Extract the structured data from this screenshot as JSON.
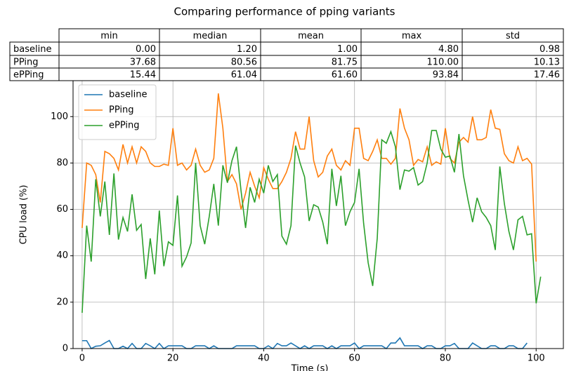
{
  "chart_data": {
    "type": "line",
    "title": "Comparing performance of pping variants",
    "xlabel": "Time (s)",
    "ylabel": "CPU load (%)",
    "table": {
      "columns": [
        "min",
        "median",
        "mean",
        "max",
        "std"
      ],
      "rows": [
        {
          "label": "baseline",
          "cells": [
            "0.00",
            "1.20",
            "1.00",
            "4.80",
            "0.98"
          ]
        },
        {
          "label": "PPing",
          "cells": [
            "37.68",
            "80.56",
            "81.75",
            "110.00",
            "10.13"
          ]
        },
        {
          "label": "ePPing",
          "cells": [
            "15.44",
            "61.04",
            "61.60",
            "93.84",
            "17.46"
          ]
        }
      ]
    },
    "x": [
      0,
      1,
      2,
      3,
      4,
      5,
      6,
      7,
      8,
      9,
      10,
      11,
      12,
      13,
      14,
      15,
      16,
      17,
      18,
      19,
      20,
      21,
      22,
      23,
      24,
      25,
      26,
      27,
      28,
      29,
      30,
      31,
      32,
      33,
      34,
      35,
      36,
      37,
      38,
      39,
      40,
      41,
      42,
      43,
      44,
      45,
      46,
      47,
      48,
      49,
      50,
      51,
      52,
      53,
      54,
      55,
      56,
      57,
      58,
      59,
      60,
      61,
      62,
      63,
      64,
      65,
      66,
      67,
      68,
      69,
      70,
      71,
      72,
      73,
      74,
      75,
      76,
      77,
      78,
      79,
      80,
      81,
      82,
      83,
      84,
      85,
      86,
      87,
      88,
      89,
      90,
      91,
      92,
      93,
      94,
      95,
      96,
      97,
      98,
      99,
      100,
      101
    ],
    "series": [
      {
        "name": "baseline",
        "color": "#1f77b4",
        "values": [
          3.4,
          3.4,
          0,
          1,
          1.2,
          2.4,
          3.5,
          0,
          0,
          1,
          0,
          2.2,
          0,
          0,
          2.2,
          1.2,
          0,
          2.2,
          0,
          1.2,
          1.2,
          1.2,
          1.2,
          0,
          0,
          1.2,
          1.2,
          1.2,
          0,
          1.2,
          0,
          0,
          0,
          0,
          1.2,
          1.2,
          1.2,
          1.2,
          1.2,
          0,
          0,
          1.2,
          0,
          2.2,
          1.2,
          1.2,
          2.4,
          1.2,
          0,
          1.2,
          0,
          1.2,
          1.2,
          1.2,
          0,
          1.2,
          0,
          1.2,
          1.2,
          1.2,
          2.4,
          0,
          1.2,
          1.2,
          1.2,
          1.2,
          1.2,
          0,
          2.4,
          2.4,
          4.6,
          1.2,
          1.2,
          1.2,
          1.2,
          0,
          1.2,
          1.2,
          0,
          0,
          1.2,
          1.2,
          2.2,
          0,
          0,
          0,
          2.4,
          1.2,
          0,
          0,
          1.2,
          1.2,
          0,
          0,
          1.2,
          1.2,
          0,
          0,
          2.4,
          null,
          null,
          null
        ]
      },
      {
        "name": "PPing",
        "color": "#ff7f0e",
        "values": [
          52,
          80,
          79,
          75,
          63,
          85,
          84,
          82,
          77,
          88,
          80,
          87,
          80,
          87,
          85,
          80,
          78.5,
          78.5,
          79.5,
          79,
          95,
          79,
          80,
          77,
          79,
          86,
          79,
          76,
          77,
          82,
          110,
          95,
          72,
          75,
          71,
          60,
          67,
          76,
          70,
          65,
          78,
          73,
          69,
          69,
          72,
          76,
          82,
          93.5,
          86,
          86,
          100,
          81,
          74,
          76,
          83,
          86,
          79,
          77,
          81,
          79,
          95,
          95,
          82,
          81,
          85,
          90,
          82,
          82,
          79.5,
          82,
          103.5,
          95,
          90,
          79,
          81.5,
          80.5,
          87,
          79,
          80.5,
          79.5,
          95,
          82,
          80,
          89,
          91,
          89,
          100,
          90,
          90,
          91,
          103,
          95,
          94.5,
          84,
          81,
          80,
          87,
          81,
          82,
          79.5,
          37.5,
          null
        ]
      },
      {
        "name": "ePPing",
        "color": "#2ca02c",
        "values": [
          15.4,
          53,
          37.5,
          73,
          57,
          72,
          49,
          75.5,
          47,
          56.5,
          50.5,
          66.5,
          51,
          53.5,
          30,
          47.5,
          32,
          59.5,
          35.5,
          46,
          44.5,
          66,
          35.5,
          39.5,
          45.5,
          80,
          53,
          45,
          57,
          71,
          53,
          79,
          71.5,
          81,
          87,
          68,
          52,
          69.5,
          63,
          73,
          67,
          79,
          72,
          75,
          48.5,
          45,
          53,
          87.5,
          80,
          74,
          55,
          62,
          61,
          54.5,
          45,
          77.5,
          61.5,
          74.5,
          53,
          59,
          63,
          77.5,
          54,
          37,
          27,
          47.5,
          90,
          88.5,
          93.5,
          87,
          68.5,
          77,
          76.5,
          78,
          70.5,
          72,
          80,
          94,
          94,
          86,
          82.5,
          83,
          76,
          92.5,
          74.5,
          64,
          54.5,
          65,
          59,
          56.5,
          53,
          42.5,
          78.5,
          62.5,
          50.5,
          42.5,
          55.5,
          57,
          49,
          49.5,
          19.5,
          31
        ]
      }
    ],
    "xlim": [
      -2,
      106
    ],
    "xticks": [
      0,
      20,
      40,
      60,
      80,
      100
    ],
    "ylim": [
      0,
      115.5
    ],
    "yticks": [
      0,
      20,
      40,
      60,
      80,
      100
    ],
    "grid": true,
    "legend": "upper left"
  }
}
